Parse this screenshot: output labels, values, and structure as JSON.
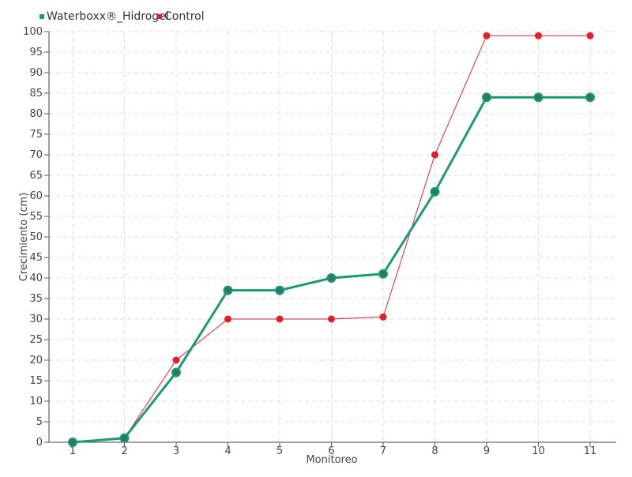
{
  "chart_data": {
    "type": "line",
    "xlabel": "Monitoreo",
    "ylabel": "Crecimiento (cm)",
    "categories": [
      "1",
      "2",
      "3",
      "4",
      "5",
      "6",
      "7",
      "8",
      "9",
      "10",
      "11"
    ],
    "y_ticks": [
      "0",
      "5",
      "10",
      "15",
      "20",
      "25",
      "30",
      "35",
      "40",
      "45",
      "50",
      "55",
      "60",
      "65",
      "70",
      "75",
      "80",
      "85",
      "90",
      "95",
      "100"
    ],
    "ylim": [
      0,
      100
    ],
    "grid": true,
    "legend_position": "top-left",
    "series": [
      {
        "name": "Waterboxx®_Hidrogel",
        "color": "#1a9a78",
        "marker_fill": "#2a7a60",
        "values": [
          0,
          1,
          17,
          37,
          37,
          40,
          41,
          61,
          84,
          84,
          84
        ]
      },
      {
        "name": "Control",
        "color": "#e3202a",
        "marker_fill": "#e3202a",
        "values": [
          0,
          1,
          20,
          30,
          30,
          30,
          30.5,
          70,
          99,
          99,
          99
        ]
      }
    ]
  }
}
